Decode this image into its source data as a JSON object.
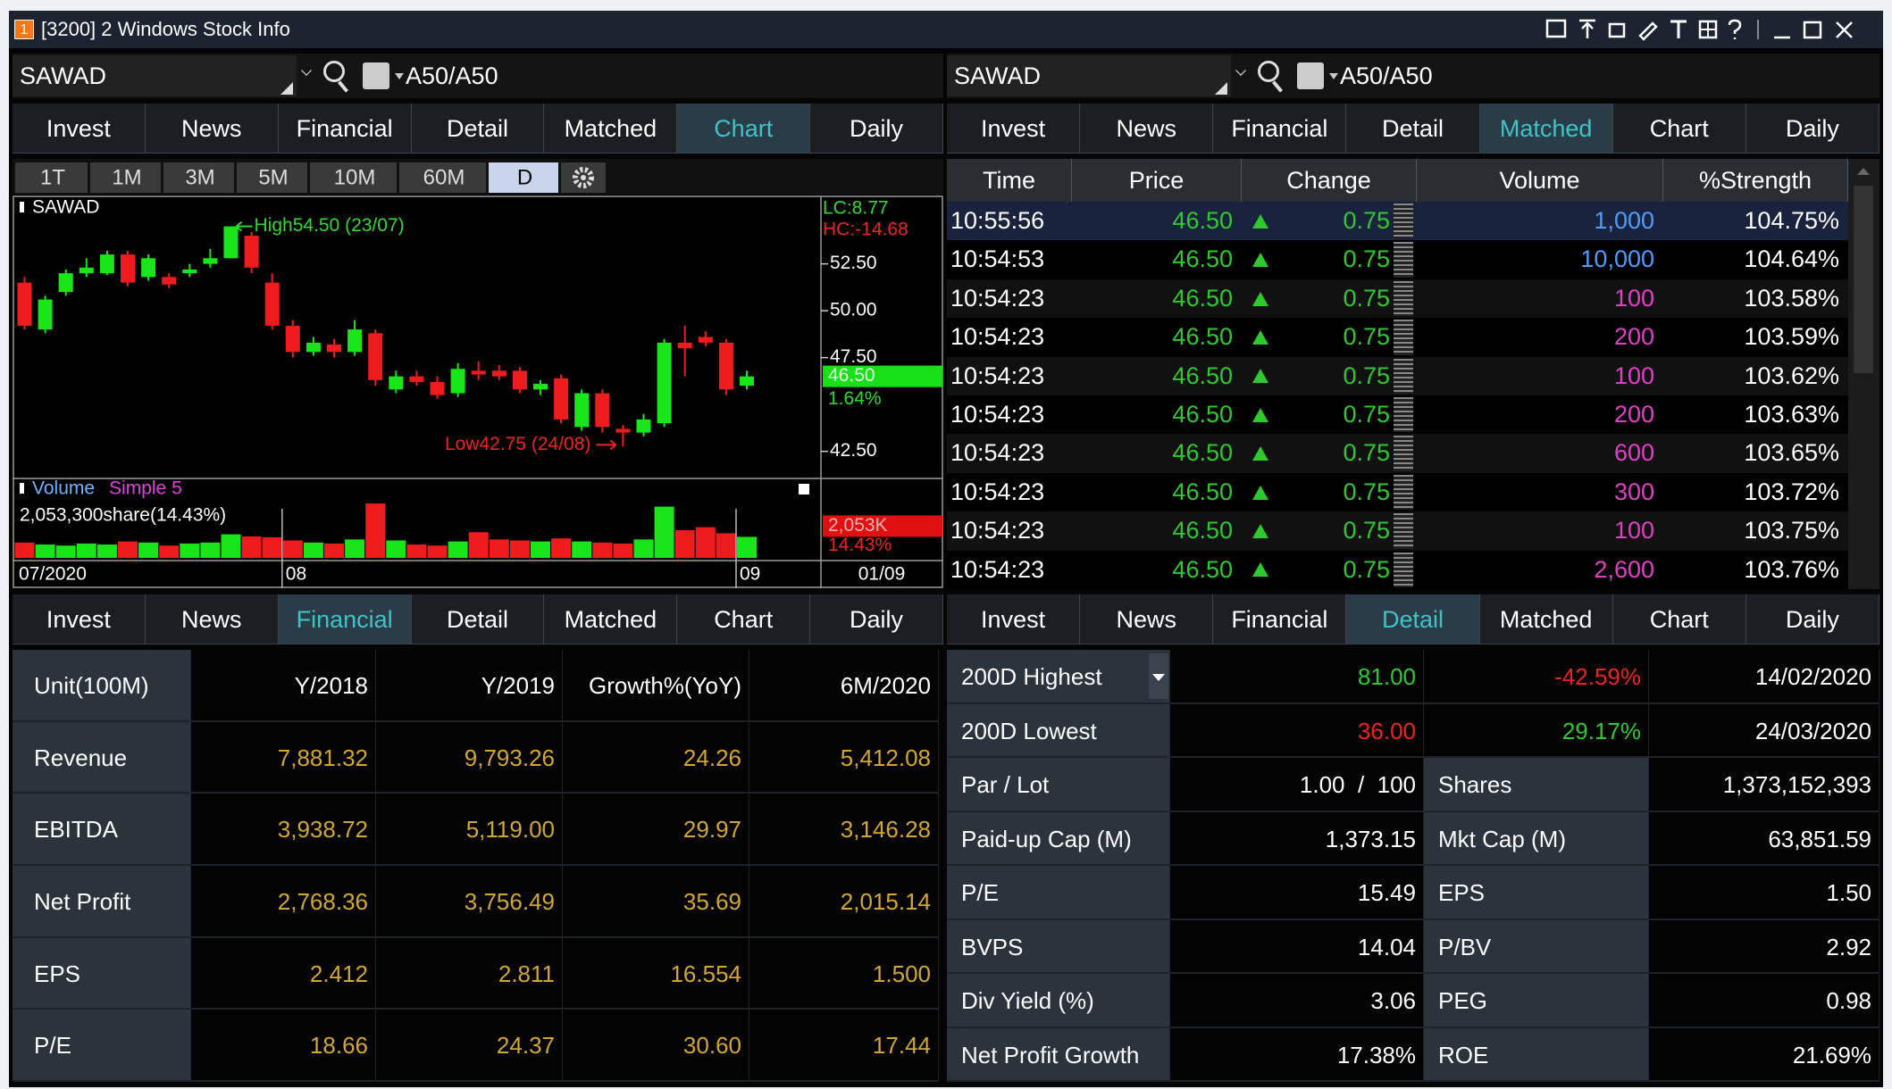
{
  "window": {
    "badge": "1",
    "title": "[3200] 2 Windows Stock Info"
  },
  "top_left": {
    "symbol": "SAWAD",
    "board": "A50/A50",
    "tabs": [
      "Invest",
      "News",
      "Financial",
      "Detail",
      "Matched",
      "Chart",
      "Daily"
    ],
    "active_tab": 5,
    "chart": {
      "type": "candlestick",
      "periods": [
        "1T",
        "1M",
        "3M",
        "5M",
        "10M",
        "60M",
        "D"
      ],
      "active_period": 6,
      "symbol_label": "SAWAD",
      "lc": "LC:8.77",
      "hc": "HC:-14.68",
      "ylim": [
        41.15,
        56.1
      ],
      "yticks": [
        {
          "value": 42.5,
          "label": "42.50"
        },
        {
          "value": 47.5,
          "label": "47.50"
        },
        {
          "value": 50,
          "label": "50.00"
        },
        {
          "value": 52.5,
          "label": "52.50"
        }
      ],
      "up_color": "#19e619",
      "down_color": "#ee1c1c",
      "categories": [
        "07/2020",
        null,
        null,
        null,
        null,
        null,
        null,
        null,
        null,
        null,
        null,
        null,
        null,
        "08",
        null,
        null,
        null,
        null,
        null,
        null,
        null,
        null,
        null,
        null,
        null,
        null,
        null,
        null,
        null,
        null,
        null,
        null,
        null,
        null,
        null,
        "09"
      ],
      "open": [
        51.5,
        49.0,
        51.0,
        52.0,
        52.0,
        53.0,
        51.8,
        51.8,
        52.0,
        52.5,
        52.8,
        54.0,
        51.5,
        49.2,
        47.8,
        48.2,
        47.8,
        48.8,
        45.8,
        46.5,
        46.2,
        45.6,
        46.8,
        46.8,
        46.8,
        45.8,
        46.4,
        43.8,
        45.6,
        43.7,
        43.5,
        44.0,
        48.3,
        48.6,
        48.3,
        46.0
      ],
      "high": [
        51.8,
        50.8,
        52.2,
        52.8,
        53.2,
        53.2,
        53.0,
        52.0,
        52.5,
        53.3,
        54.5,
        54.2,
        52.0,
        49.5,
        48.6,
        48.5,
        49.5,
        49.0,
        46.8,
        46.8,
        46.5,
        47.2,
        47.3,
        47.1,
        47.0,
        46.3,
        46.6,
        45.8,
        45.8,
        43.9,
        44.5,
        48.5,
        49.2,
        48.9,
        48.5,
        46.8
      ],
      "low": [
        49.0,
        48.8,
        50.8,
        51.8,
        51.9,
        51.3,
        51.6,
        51.2,
        51.8,
        52.3,
        52.8,
        52.0,
        49.0,
        47.5,
        47.6,
        47.5,
        47.6,
        46.0,
        45.6,
        46.0,
        45.3,
        45.4,
        46.3,
        46.3,
        45.6,
        45.5,
        44.0,
        43.6,
        43.5,
        42.75,
        43.3,
        43.8,
        46.5,
        48.1,
        45.5,
        45.8
      ],
      "close": [
        49.2,
        50.6,
        52.0,
        52.3,
        53.0,
        51.5,
        52.8,
        51.4,
        52.2,
        52.8,
        54.5,
        52.3,
        49.2,
        47.8,
        48.3,
        47.8,
        49.0,
        46.3,
        46.5,
        46.2,
        45.5,
        46.9,
        46.6,
        46.5,
        45.8,
        46.1,
        44.2,
        45.6,
        43.8,
        43.5,
        44.2,
        48.3,
        48.0,
        48.3,
        45.8,
        46.5
      ],
      "high_note": "High54.50 (23/07)",
      "low_note": "Low42.75 (24/08)",
      "last_price": {
        "value": 46.5,
        "label": "46.50"
      },
      "change_pct": "1.64%",
      "volume_title": "Volume",
      "ma_label": "Simple 5",
      "volume_text": "2,053,300share(14.43%)",
      "vlim": [
        0,
        7400000
      ],
      "volumes": [
        1500000,
        1300000,
        1200000,
        1400000,
        1300000,
        1600000,
        1500000,
        1200000,
        1400000,
        1500000,
        2300000,
        2100000,
        2000000,
        1700000,
        1500000,
        1400000,
        1800000,
        5300000,
        1700000,
        1300000,
        1200000,
        1600000,
        2500000,
        1800000,
        1700000,
        1600000,
        1900000,
        1600000,
        1500000,
        1400000,
        1800000,
        5000000,
        2700000,
        3000000,
        2400000,
        2053300
      ],
      "volume_axis_label": "2,053K",
      "volume_pct": "14.43%",
      "cursor_date": "01/09"
    }
  },
  "top_right": {
    "symbol": "SAWAD",
    "board": "A50/A50",
    "tabs": [
      "Invest",
      "News",
      "Financial",
      "Detail",
      "Matched",
      "Chart",
      "Daily"
    ],
    "active_tab": 4,
    "matched": {
      "columns": [
        "Time",
        "Price",
        "Change",
        "Volume",
        "%Strength"
      ],
      "selected_row": 0,
      "rows": [
        [
          "10:55:56",
          "46.50",
          "0.75",
          "1,000",
          "104.75%"
        ],
        [
          "10:54:53",
          "46.50",
          "0.75",
          "10,000",
          "104.64%"
        ],
        [
          "10:54:23",
          "46.50",
          "0.75",
          "100",
          "103.58%"
        ],
        [
          "10:54:23",
          "46.50",
          "0.75",
          "200",
          "103.59%"
        ],
        [
          "10:54:23",
          "46.50",
          "0.75",
          "100",
          "103.62%"
        ],
        [
          "10:54:23",
          "46.50",
          "0.75",
          "200",
          "103.63%"
        ],
        [
          "10:54:23",
          "46.50",
          "0.75",
          "600",
          "103.65%"
        ],
        [
          "10:54:23",
          "46.50",
          "0.75",
          "300",
          "103.72%"
        ],
        [
          "10:54:23",
          "46.50",
          "0.75",
          "100",
          "103.75%"
        ],
        [
          "10:54:23",
          "46.50",
          "0.75",
          "2,600",
          "103.76%"
        ]
      ],
      "volume_colors": [
        "#4f9cff",
        "#4f9cff",
        "#e040c8",
        "#e040c8",
        "#e040c8",
        "#e040c8",
        "#e040c8",
        "#e040c8",
        "#e040c8",
        "#e040c8"
      ]
    }
  },
  "bottom_left": {
    "tabs": [
      "Invest",
      "News",
      "Financial",
      "Detail",
      "Matched",
      "Chart",
      "Daily"
    ],
    "active_tab": 2,
    "financial": {
      "header": [
        "Unit(100M)",
        "Y/2018",
        "Y/2019",
        "Growth%(YoY)",
        "6M/2020"
      ],
      "rows": [
        [
          "Revenue",
          "7,881.32",
          "9,793.26",
          "24.26",
          "5,412.08"
        ],
        [
          "EBITDA",
          "3,938.72",
          "5,119.00",
          "29.97",
          "3,146.28"
        ],
        [
          "Net Profit",
          "2,768.36",
          "3,756.49",
          "35.69",
          "2,015.14"
        ],
        [
          "EPS",
          "2.412",
          "2.811",
          "16.554",
          "1.500"
        ],
        [
          "P/E",
          "18.66",
          "24.37",
          "30.60",
          "17.44"
        ]
      ]
    }
  },
  "bottom_right": {
    "tabs": [
      "Invest",
      "News",
      "Financial",
      "Detail",
      "Matched",
      "Chart",
      "Daily"
    ],
    "active_tab": 3,
    "detail": {
      "range_rows": [
        {
          "label": "200D Highest",
          "value": "81.00",
          "change": "-42.59%",
          "date": "14/02/2020",
          "value_color": "#2ec92e",
          "change_color": "#ee2222"
        },
        {
          "label": "200D Lowest",
          "value": "36.00",
          "change": "29.17%",
          "date": "24/03/2020",
          "value_color": "#ee2222",
          "change_color": "#2ec92e"
        }
      ],
      "stats": [
        [
          "Par / Lot",
          "1.00  /  100",
          "Shares",
          "1,373,152,393"
        ],
        [
          "Paid-up Cap (M)",
          "1,373.15",
          "Mkt Cap (M)",
          "63,851.59"
        ],
        [
          "P/E",
          "15.49",
          "EPS",
          "1.50"
        ],
        [
          "BVPS",
          "14.04",
          "P/BV",
          "2.92"
        ],
        [
          "Div Yield (%)",
          "3.06",
          "PEG",
          "0.98"
        ],
        [
          "Net Profit Growth",
          "17.38%",
          "ROE",
          "21.69%"
        ]
      ]
    }
  }
}
